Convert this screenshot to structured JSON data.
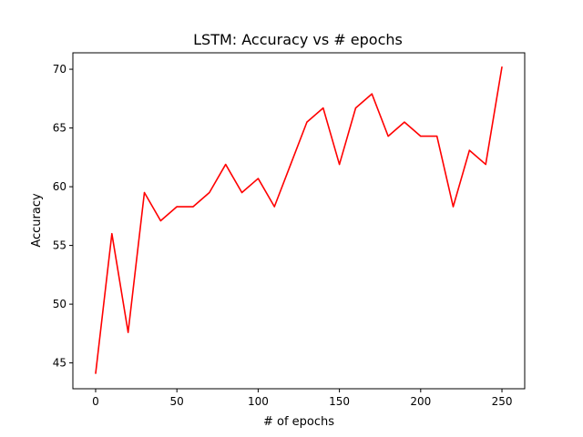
{
  "chart_data": {
    "type": "line",
    "title": "LSTM: Accuracy vs # epochs",
    "xlabel": "# of epochs",
    "ylabel": "Accuracy",
    "xlim": [
      -14,
      264
    ],
    "ylim": [
      42.8,
      71.4
    ],
    "xticks": [
      0,
      50,
      100,
      150,
      200,
      250
    ],
    "yticks": [
      45,
      50,
      55,
      60,
      65,
      70
    ],
    "grid": false,
    "series": [
      {
        "color": "#ff0000",
        "x": [
          0,
          10,
          20,
          30,
          40,
          50,
          60,
          70,
          80,
          90,
          100,
          110,
          120,
          130,
          140,
          150,
          160,
          170,
          180,
          190,
          200,
          210,
          220,
          230,
          240,
          250
        ],
        "y": [
          44.1,
          56.0,
          47.6,
          59.5,
          57.1,
          58.3,
          58.3,
          59.5,
          61.9,
          59.5,
          60.7,
          58.3,
          61.9,
          65.5,
          66.7,
          61.9,
          66.7,
          67.9,
          64.3,
          65.5,
          64.3,
          64.3,
          58.3,
          63.1,
          61.9,
          70.2
        ]
      }
    ]
  }
}
